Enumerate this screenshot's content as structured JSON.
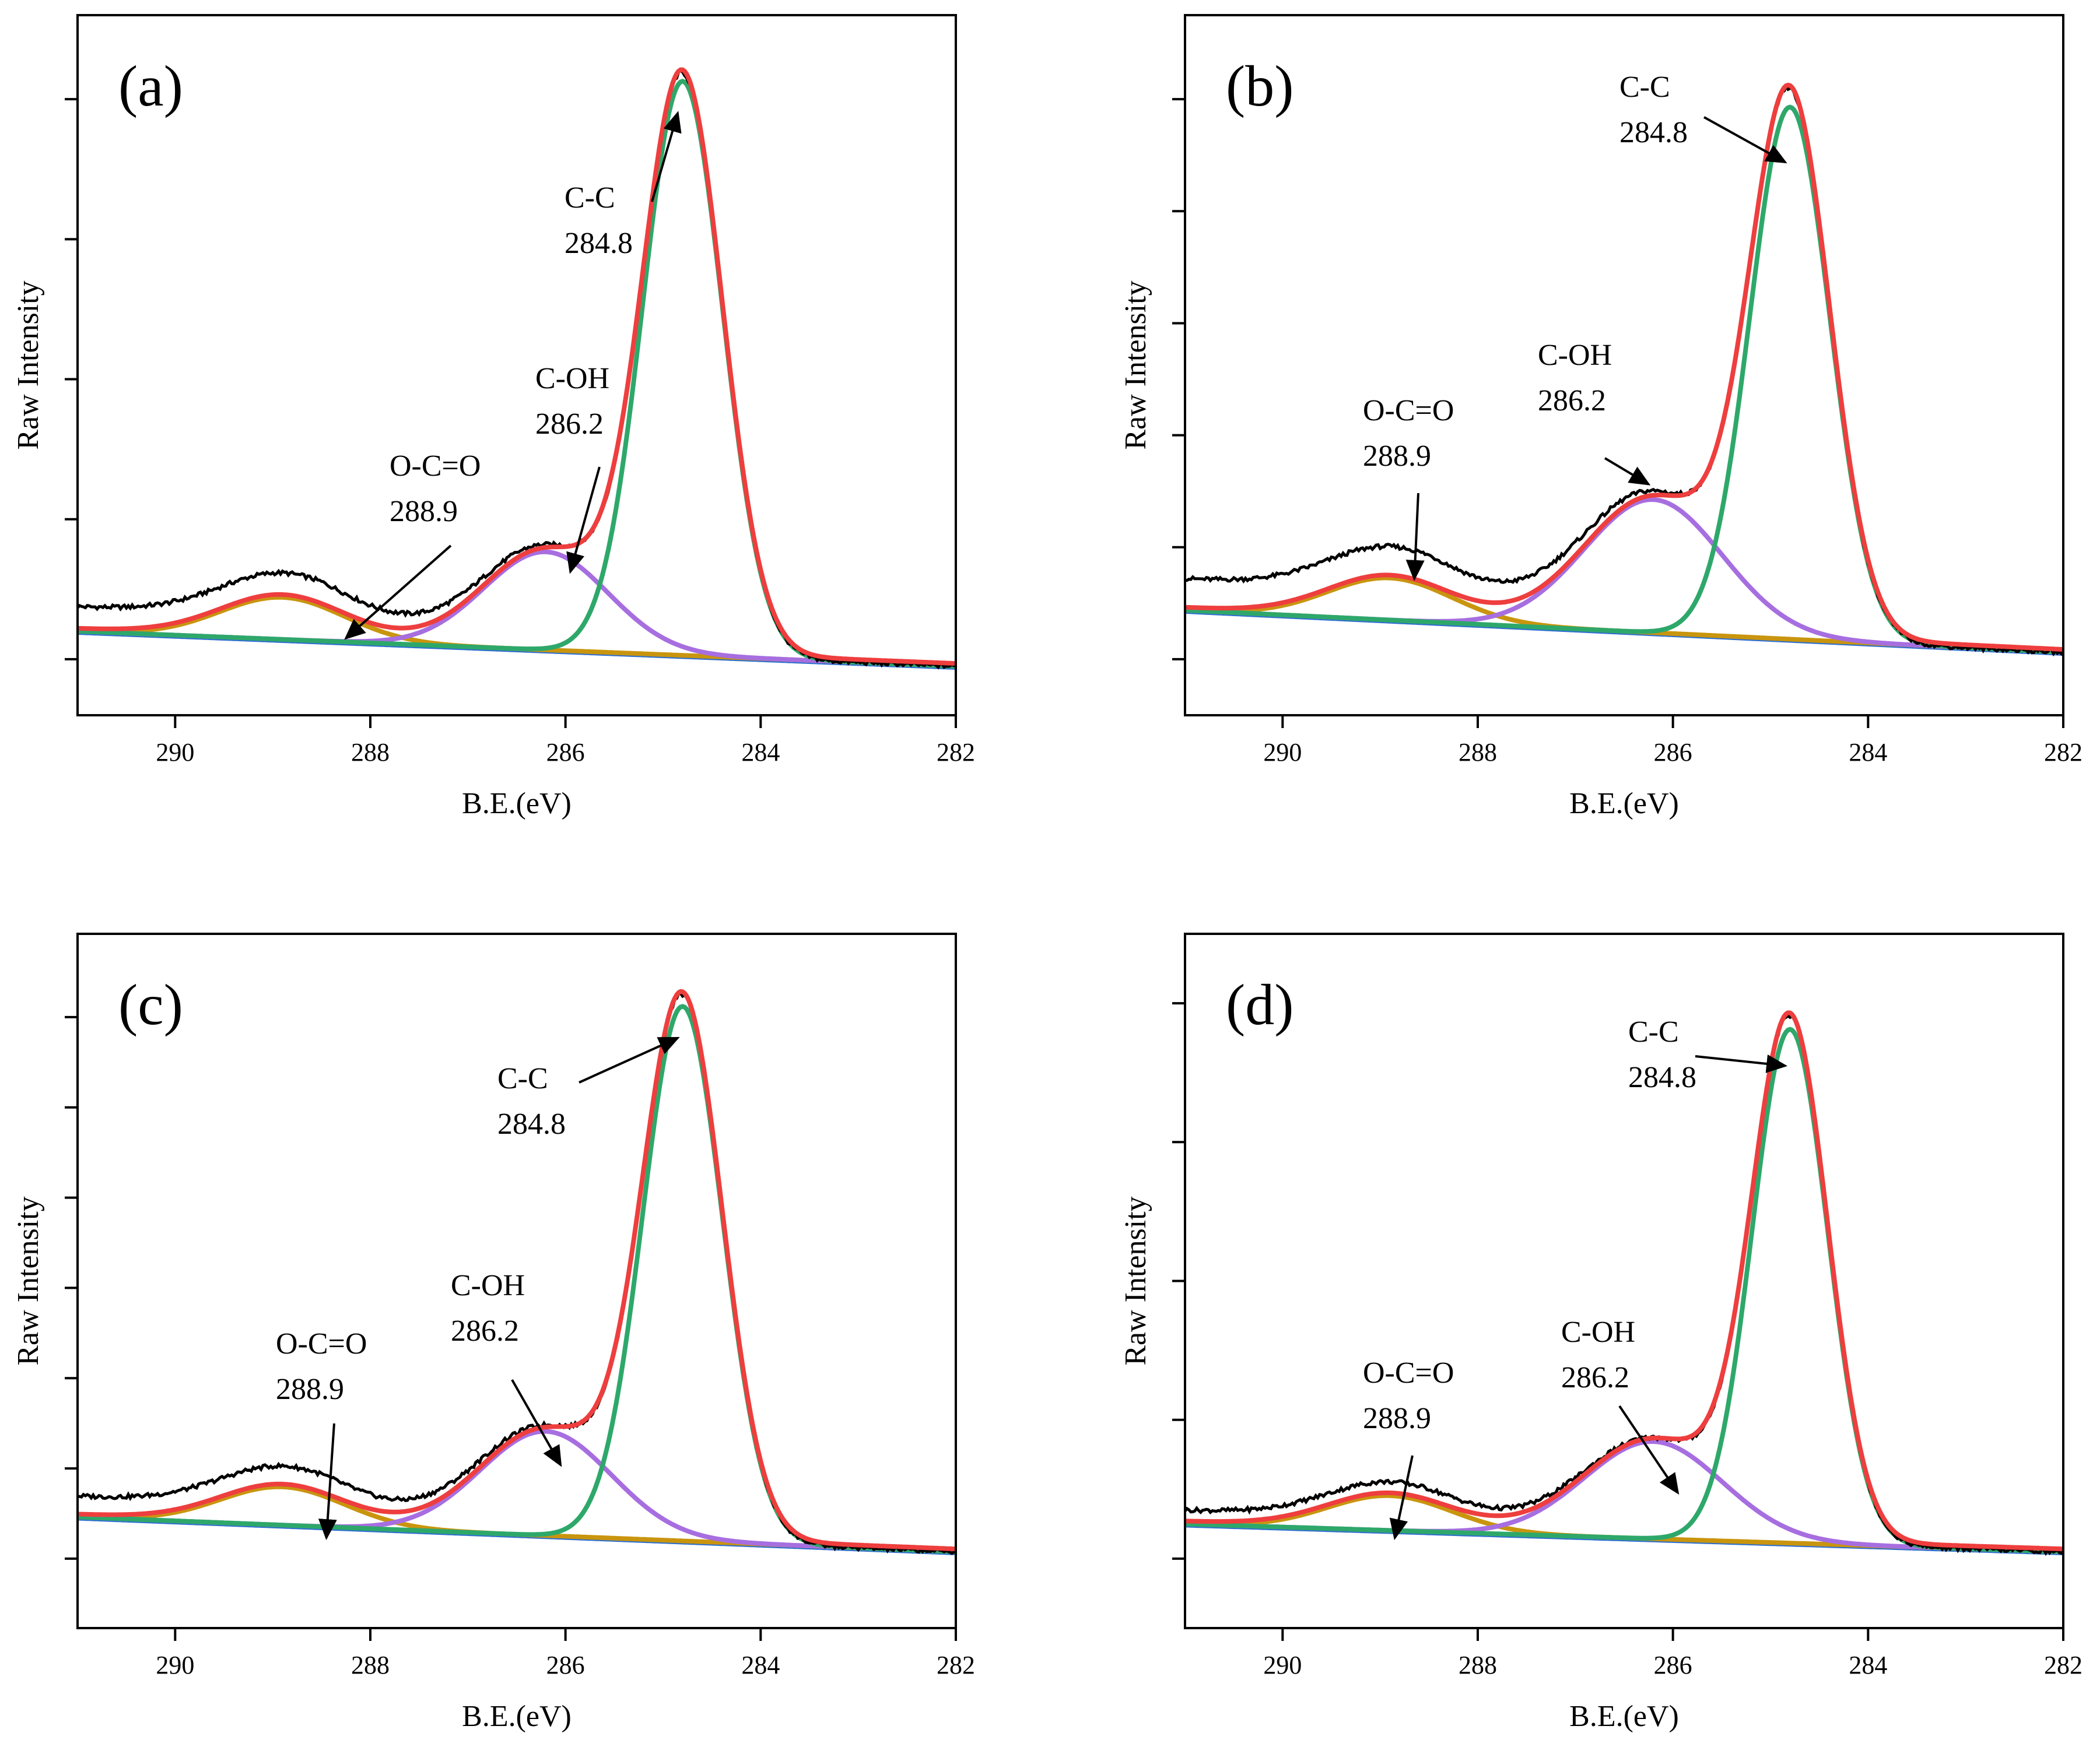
{
  "colors": {
    "raw": "#000000",
    "fit": "#ee3e3e",
    "cc": "#2ea86a",
    "coh": "#a76ee0",
    "oco": "#c9950e",
    "baseline": "#2d6fcf"
  },
  "chart_data": [
    {
      "panel": "a",
      "type": "line",
      "label": "(a)",
      "xlabel": "B.E.(eV)",
      "ylabel": "Raw Intensity",
      "xlim": [
        291,
        282
      ],
      "xticks": [
        "290",
        "288",
        "286",
        "284",
        "282"
      ],
      "ylim": [
        0,
        1
      ],
      "yticks": [
        0.08,
        0.28,
        0.48,
        0.68,
        0.88
      ],
      "background": {
        "left": 0.12,
        "right": 0.07
      },
      "components": [
        {
          "name": "C-C",
          "center": 284.8,
          "height": 0.82,
          "width": 0.58
        },
        {
          "name": "C-OH",
          "center": 286.2,
          "height": 0.14,
          "width": 0.9
        },
        {
          "name": "O-C=O",
          "center": 288.9,
          "height": 0.06,
          "width": 0.9
        }
      ],
      "raw_offset": 0.035,
      "annotations": [
        {
          "name": "C-C",
          "value": "284.8"
        },
        {
          "name": "C-OH",
          "value": "286.2"
        },
        {
          "name": "O-C=O",
          "value": "288.9"
        }
      ]
    },
    {
      "panel": "b",
      "type": "line",
      "label": "(b)",
      "xlabel": "B.E.(eV)",
      "ylabel": "Raw Intensity",
      "xlim": [
        291,
        282
      ],
      "xticks": [
        "290",
        "288",
        "286",
        "284",
        "282"
      ],
      "ylim": [
        0,
        1
      ],
      "yticks": [
        0.08,
        0.24,
        0.4,
        0.56,
        0.72,
        0.88
      ],
      "background": {
        "left": 0.15,
        "right": 0.09
      },
      "components": [
        {
          "name": "C-C",
          "center": 284.8,
          "height": 0.76,
          "width": 0.58
        },
        {
          "name": "C-OH",
          "center": 286.2,
          "height": 0.19,
          "width": 1.0
        },
        {
          "name": "O-C=O",
          "center": 288.9,
          "height": 0.06,
          "width": 0.9
        }
      ],
      "raw_offset": 0.045,
      "annotations": [
        {
          "name": "C-C",
          "value": "284.8"
        },
        {
          "name": "C-OH",
          "value": "286.2"
        },
        {
          "name": "O-C=O",
          "value": "288.9"
        }
      ]
    },
    {
      "panel": "c",
      "type": "line",
      "label": "(c)",
      "xlabel": "B.E.(eV)",
      "ylabel": "Raw Intensity",
      "xlim": [
        291,
        282
      ],
      "xticks": [
        "290",
        "288",
        "286",
        "284",
        "282"
      ],
      "ylim": [
        0,
        1
      ],
      "yticks": [
        0.1,
        0.23,
        0.36,
        0.49,
        0.62,
        0.75,
        0.88
      ],
      "background": {
        "left": 0.16,
        "right": 0.11
      },
      "components": [
        {
          "name": "C-C",
          "center": 284.8,
          "height": 0.77,
          "width": 0.58
        },
        {
          "name": "C-OH",
          "center": 286.2,
          "height": 0.15,
          "width": 0.95
        },
        {
          "name": "O-C=O",
          "center": 288.9,
          "height": 0.055,
          "width": 0.9
        }
      ],
      "raw_offset": 0.03,
      "annotations": [
        {
          "name": "C-C",
          "value": "284.8"
        },
        {
          "name": "C-OH",
          "value": "286.2"
        },
        {
          "name": "O-C=O",
          "value": "288.9"
        }
      ]
    },
    {
      "panel": "d",
      "type": "line",
      "label": "(d)",
      "xlabel": "B.E.(eV)",
      "ylabel": "Raw Intensity",
      "xlim": [
        291,
        282
      ],
      "xticks": [
        "290",
        "288",
        "286",
        "284",
        "282"
      ],
      "ylim": [
        0,
        1
      ],
      "yticks": [
        0.1,
        0.3,
        0.5,
        0.7,
        0.9
      ],
      "background": {
        "left": 0.15,
        "right": 0.11
      },
      "components": [
        {
          "name": "C-C",
          "center": 284.8,
          "height": 0.74,
          "width": 0.55
        },
        {
          "name": "C-OH",
          "center": 286.2,
          "height": 0.14,
          "width": 1.0
        },
        {
          "name": "O-C=O",
          "center": 288.9,
          "height": 0.05,
          "width": 0.9
        }
      ],
      "raw_offset": 0.02,
      "annotations": [
        {
          "name": "C-C",
          "value": "284.8"
        },
        {
          "name": "C-OH",
          "value": "286.2"
        },
        {
          "name": "O-C=O",
          "value": "288.9"
        }
      ]
    }
  ]
}
